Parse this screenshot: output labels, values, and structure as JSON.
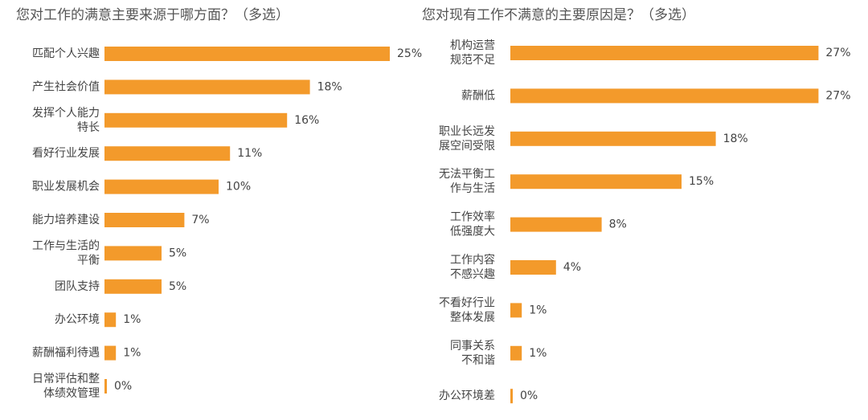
{
  "chart_data": [
    {
      "type": "bar",
      "title": "您对工作的满意主要来源于哪方面？（多选）",
      "color": "#f39a2b",
      "categories": [
        "匹配个人兴趣",
        "产生社会价值",
        "发挥个人能力\n特长",
        "看好行业发展",
        "职业发展机会",
        "能力培养建设",
        "工作与生活的\n平衡",
        "团队支持",
        "办公环境",
        "薪酬福利待遇",
        "日常评估和整\n体绩效管理"
      ],
      "values": [
        25,
        18,
        16,
        11,
        10,
        7,
        5,
        5,
        1,
        1,
        0
      ],
      "value_labels": [
        "25%",
        "18%",
        "16%",
        "11%",
        "10%",
        "7%",
        "5%",
        "5%",
        "1%",
        "1%",
        "0%"
      ]
    },
    {
      "type": "bar",
      "title": "您对现有工作不满意的主要原因是？（多选）",
      "color": "#f39a2b",
      "categories": [
        "机构运营\n规范不足",
        "薪酬低",
        "职业长远发\n展空间受限",
        "无法平衡工\n作与生活",
        "工作效率\n低强度大",
        "工作内容\n不感兴趣",
        "不看好行业\n整体发展",
        "同事关系\n不和谐",
        "办公环境差"
      ],
      "values": [
        27,
        27,
        18,
        15,
        8,
        4,
        1,
        1,
        0
      ],
      "value_labels": [
        "27%",
        "27%",
        "18%",
        "15%",
        "8%",
        "4%",
        "1%",
        "1%",
        "0%"
      ]
    }
  ]
}
